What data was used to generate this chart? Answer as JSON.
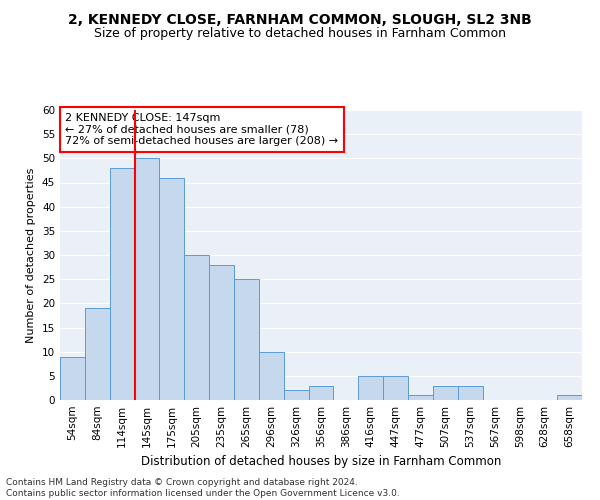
{
  "title": "2, KENNEDY CLOSE, FARNHAM COMMON, SLOUGH, SL2 3NB",
  "subtitle": "Size of property relative to detached houses in Farnham Common",
  "xlabel": "Distribution of detached houses by size in Farnham Common",
  "ylabel": "Number of detached properties",
  "categories": [
    "54sqm",
    "84sqm",
    "114sqm",
    "145sqm",
    "175sqm",
    "205sqm",
    "235sqm",
    "265sqm",
    "296sqm",
    "326sqm",
    "356sqm",
    "386sqm",
    "416sqm",
    "447sqm",
    "477sqm",
    "507sqm",
    "537sqm",
    "567sqm",
    "598sqm",
    "628sqm",
    "658sqm"
  ],
  "values": [
    9,
    19,
    48,
    50,
    46,
    30,
    28,
    25,
    10,
    2,
    3,
    0,
    5,
    5,
    1,
    3,
    3,
    0,
    0,
    0,
    1
  ],
  "bar_color": "#c5d8ed",
  "bar_edge_color": "#5b9bd5",
  "red_line_index": 3,
  "annotation_line1": "2 KENNEDY CLOSE: 147sqm",
  "annotation_line2": "← 27% of detached houses are smaller (78)",
  "annotation_line3": "72% of semi-detached houses are larger (208) →",
  "annotation_box_color": "white",
  "annotation_box_edge": "red",
  "ylim": [
    0,
    60
  ],
  "yticks": [
    0,
    5,
    10,
    15,
    20,
    25,
    30,
    35,
    40,
    45,
    50,
    55,
    60
  ],
  "bg_color": "#eaf0f7",
  "footer_line1": "Contains HM Land Registry data © Crown copyright and database right 2024.",
  "footer_line2": "Contains public sector information licensed under the Open Government Licence v3.0.",
  "title_fontsize": 10,
  "subtitle_fontsize": 9,
  "xlabel_fontsize": 8.5,
  "ylabel_fontsize": 8,
  "tick_fontsize": 7.5,
  "annotation_fontsize": 8,
  "footer_fontsize": 6.5
}
